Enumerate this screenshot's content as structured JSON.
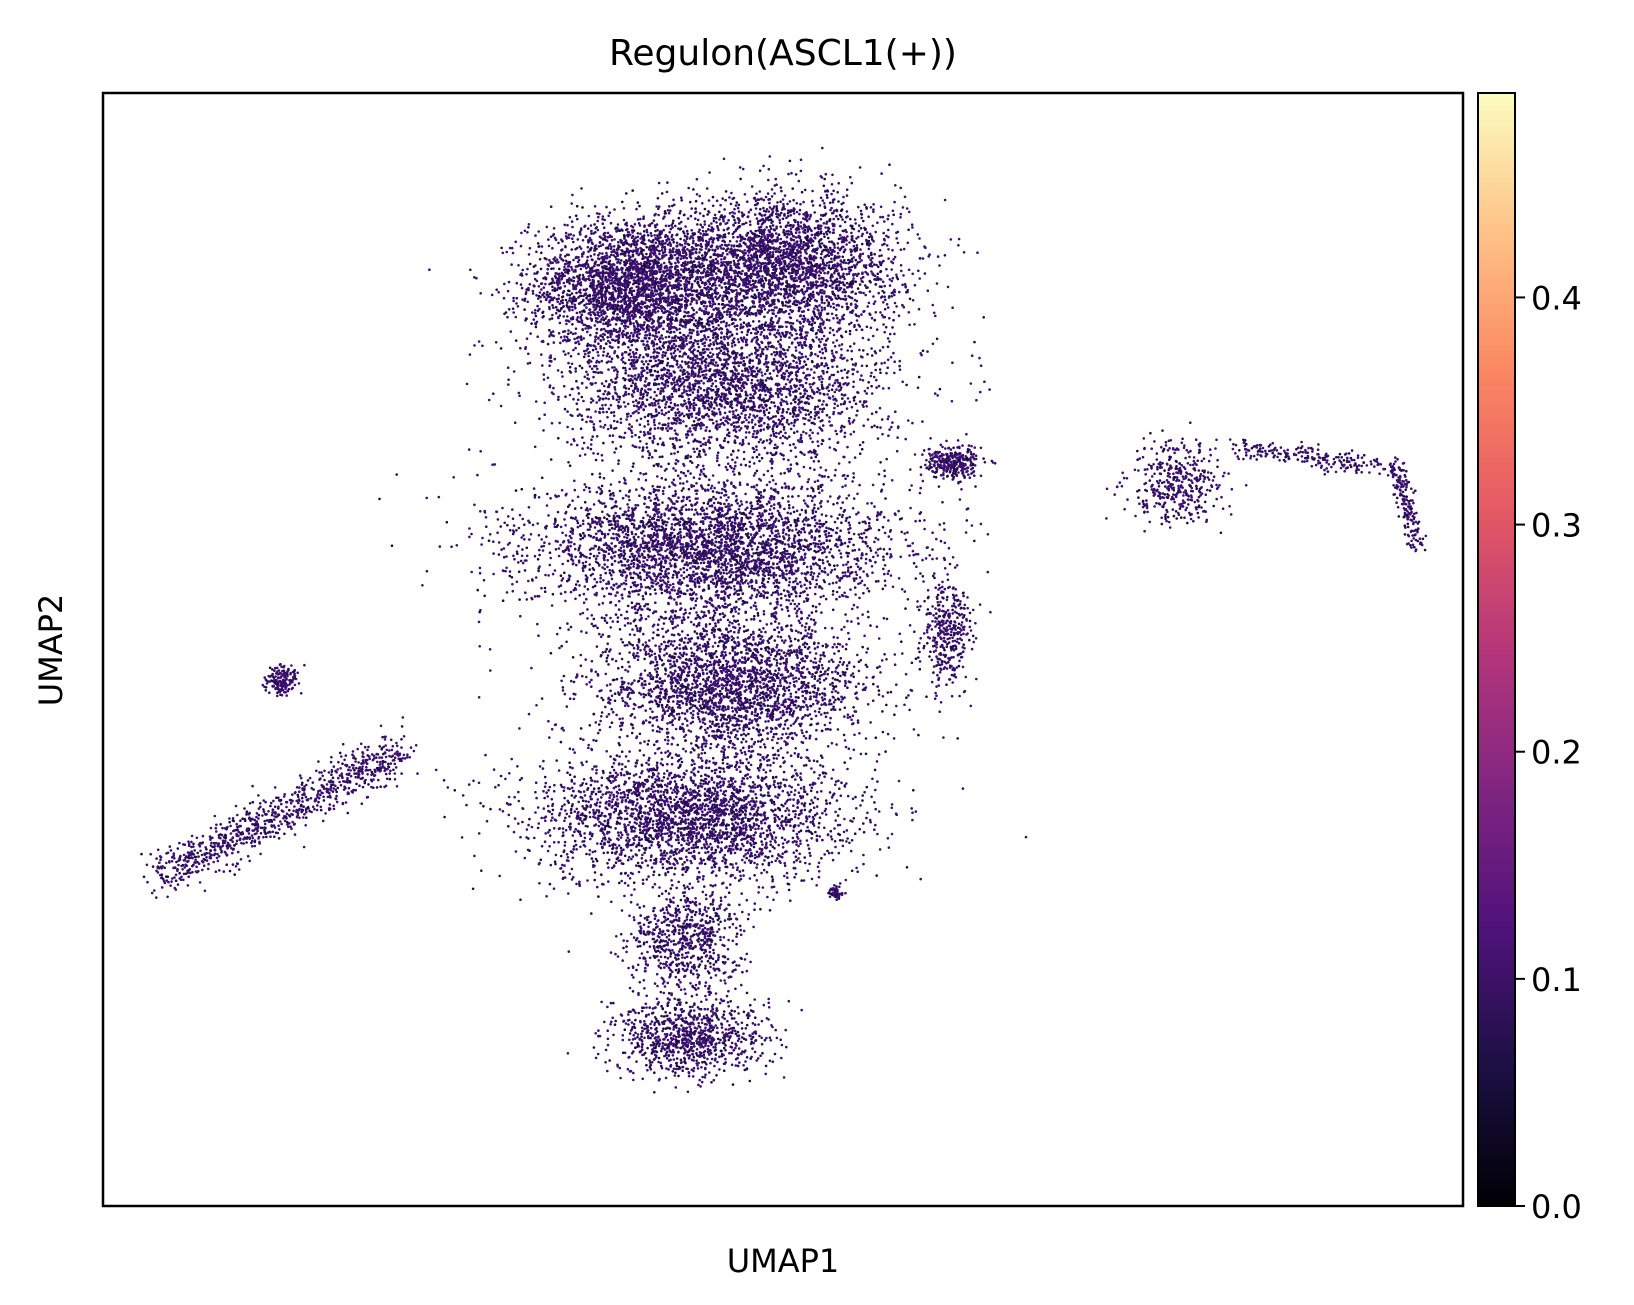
{
  "chart_data": {
    "type": "scatter",
    "title": "Regulon(ASCL1(+))",
    "xlabel": "UMAP1",
    "ylabel": "UMAP2",
    "x_ticks_shown": false,
    "y_ticks_shown": false,
    "grid": false,
    "point_color_low": "#1b0c41",
    "point_color_typical": "#3b0f70",
    "colorbar": {
      "colormap": "magma",
      "range": [
        0.0,
        0.49
      ],
      "ticks": [
        0.0,
        0.1,
        0.2,
        0.3,
        0.4
      ],
      "tick_labels": [
        "0.0",
        "0.1",
        "0.2",
        "0.3",
        "0.4"
      ],
      "stops": [
        "#000004",
        "#1c1044",
        "#4f127b",
        "#812581",
        "#b5367a",
        "#e55964",
        "#fb8761",
        "#fec287",
        "#fcfdbf"
      ]
    },
    "clusters": [
      {
        "center": [
          -2.8,
          10.2
        ],
        "spread": [
          2.1,
          1.3
        ],
        "points": 2600,
        "value": 0.08
      },
      {
        "center": [
          0.4,
          10.6
        ],
        "spread": [
          2.6,
          1.4
        ],
        "points": 3000,
        "value": 0.09
      },
      {
        "center": [
          -0.7,
          8.2
        ],
        "spread": [
          3.4,
          1.6
        ],
        "points": 3000,
        "value": 0.07
      },
      {
        "center": [
          -1.0,
          5.0
        ],
        "spread": [
          3.9,
          1.4
        ],
        "points": 3600,
        "value": 0.08
      },
      {
        "center": [
          -0.6,
          2.3
        ],
        "spread": [
          2.9,
          1.4
        ],
        "points": 2600,
        "value": 0.09
      },
      {
        "center": [
          -1.5,
          -0.3
        ],
        "spread": [
          3.4,
          1.3
        ],
        "points": 2800,
        "value": 0.09
      },
      {
        "center": [
          -1.6,
          -2.8
        ],
        "spread": [
          1.2,
          1.1
        ],
        "points": 700,
        "value": 0.08
      },
      {
        "center": [
          -1.5,
          -4.7
        ],
        "spread": [
          1.6,
          0.8
        ],
        "points": 900,
        "value": 0.09
      },
      {
        "center": [
          4.1,
          6.7
        ],
        "spread": [
          0.6,
          0.35
        ],
        "points": 300,
        "value": 0.1
      },
      {
        "center": [
          4.0,
          3.3
        ],
        "spread": [
          0.5,
          1.0
        ],
        "points": 350,
        "value": 0.1
      },
      {
        "center": [
          8.9,
          6.3
        ],
        "spread": [
          1.0,
          0.8
        ],
        "points": 400,
        "value": 0.1
      },
      {
        "center": [
          -10.2,
          2.4
        ],
        "spread": [
          0.35,
          0.3
        ],
        "points": 160,
        "value": 0.1
      },
      {
        "center": [
          1.6,
          -1.8
        ],
        "spread": [
          0.15,
          0.12
        ],
        "points": 50,
        "value": 0.1
      }
    ],
    "arms": [
      {
        "from": [
          -12.8,
          -1.5
        ],
        "to": [
          -7.6,
          1.0
        ],
        "width": 0.45,
        "points": 900,
        "value": 0.1
      },
      {
        "from": [
          10.2,
          7.0
        ],
        "to": [
          13.6,
          6.6
        ],
        "width": 0.2,
        "points": 220,
        "value": 0.1
      },
      {
        "from": [
          13.6,
          6.6
        ],
        "to": [
          14.0,
          5.0
        ],
        "width": 0.2,
        "points": 160,
        "value": 0.1
      }
    ],
    "xlim": [
      -14.0,
      15.0
    ],
    "ylim": [
      -8.0,
      14.0
    ]
  }
}
